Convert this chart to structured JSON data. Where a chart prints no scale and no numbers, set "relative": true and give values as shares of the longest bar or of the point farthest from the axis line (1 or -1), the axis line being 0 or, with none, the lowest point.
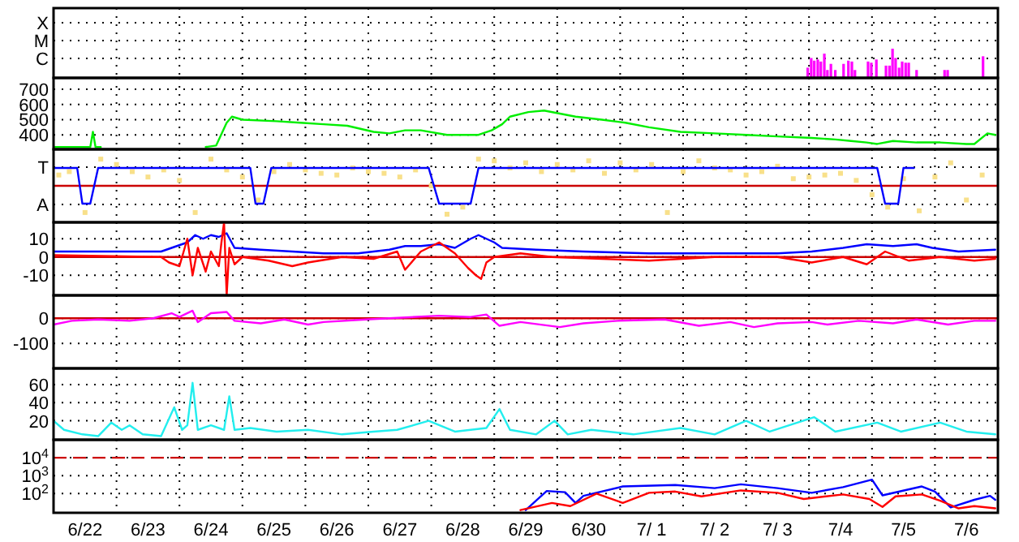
{
  "chart_data": [
    {
      "type": "bar",
      "relative": true,
      "annotations": [
        "X",
        "M",
        "C"
      ],
      "grid": true,
      "tick_labels": "y",
      "xlim": [
        "--06-22T00:00",
        "--07-07T00:00"
      ],
      "xticks": [
        {
          "value": "--06-23T00:00",
          "label": null
        },
        {
          "value": "--06-24T00:00",
          "label": null
        },
        {
          "value": "--06-25T00:00",
          "label": null
        },
        {
          "value": "--06-26T00:00",
          "label": null
        },
        {
          "value": "--06-27T00:00",
          "label": null
        },
        {
          "value": "--06-28T00:00",
          "label": null
        },
        {
          "value": "--06-29T00:00",
          "label": null
        },
        {
          "value": "--06-30T00:00",
          "label": null
        },
        {
          "value": "--07-01T00:00",
          "label": null
        },
        {
          "value": "--07-02T00:00",
          "label": null
        },
        {
          "value": "--07-03T00:00",
          "label": null
        },
        {
          "value": "--07-04T00:00",
          "label": null
        },
        {
          "value": "--07-05T00:00",
          "label": null
        },
        {
          "value": "--07-06T00:00",
          "label": null
        }
      ],
      "series": [
        {
          "color": "#ff00ff",
          "x": [
            "--07-03T23:30",
            "--07-04T00:50",
            "--07-04T02:00",
            "--07-04T03:20",
            "--07-04T04:30",
            "--07-04T05:50",
            "--07-04T07:00",
            "--07-04T08:20",
            "--07-04T10:00",
            "--07-04T13:10",
            "--07-04T15:00",
            "--07-04T16:20",
            "--07-04T17:30",
            "--07-04T22:30",
            "--07-04T23:45",
            "--07-05T01:40",
            "--07-05T05:20",
            "--07-05T06:40",
            "--07-05T07:50",
            "--07-05T09:00",
            "--07-05T10:20",
            "--07-05T11:30",
            "--07-05T12:50",
            "--07-05T14:00",
            "--07-05T17:00",
            "--07-06T03:40",
            "--07-06T04:50",
            "--07-06T18:20"
          ],
          "values": [
            0.35,
            0.68,
            0.59,
            0.63,
            0.56,
            0.83,
            0.27,
            0.48,
            0.27,
            0.48,
            0.59,
            0.56,
            0.27,
            0.56,
            0.52,
            0.63,
            0.42,
            0.42,
            1,
            0.68,
            0.35,
            0.56,
            0.52,
            0.52,
            0.27,
            0.27,
            0.27,
            0.74
          ]
        }
      ]
    },
    {
      "type": "line",
      "grid": true,
      "tick_labels": "y",
      "xlim": [
        "--06-22T00:00",
        "--07-07T00:00"
      ],
      "xticks": [
        {
          "value": "--06-23T00:00",
          "label": null
        },
        {
          "value": "--06-24T00:00",
          "label": null
        },
        {
          "value": "--06-25T00:00",
          "label": null
        },
        {
          "value": "--06-26T00:00",
          "label": null
        },
        {
          "value": "--06-27T00:00",
          "label": null
        },
        {
          "value": "--06-28T00:00",
          "label": null
        },
        {
          "value": "--06-29T00:00",
          "label": null
        },
        {
          "value": "--06-30T00:00",
          "label": null
        },
        {
          "value": "--07-01T00:00",
          "label": null
        },
        {
          "value": "--07-02T00:00",
          "label": null
        },
        {
          "value": "--07-03T00:00",
          "label": null
        },
        {
          "value": "--07-04T00:00",
          "label": null
        },
        {
          "value": "--07-05T00:00",
          "label": null
        },
        {
          "value": "--07-06T00:00",
          "label": null
        }
      ],
      "ylim": [
        305,
        775
      ],
      "yticks": [
        400,
        500,
        600,
        700
      ],
      "series": [
        {
          "color": "#00ee00",
          "x": [
            "--06-22T00:00",
            "--06-22T11:00",
            "--06-22T14:00",
            "--06-22T15:00",
            "--06-22T16:00",
            "--06-22T18:00",
            "--06-23T12:00",
            "--06-24T10:00",
            "--06-24T14:00",
            "--06-24T18:00",
            "--06-24T20:00",
            "--06-25T00:00",
            "--06-25T13:00",
            "--06-25T22:00",
            "--06-26T07:00",
            "--06-26T16:00",
            "--06-27T02:00",
            "--06-27T08:00",
            "--06-27T14:00",
            "--06-27T20:00",
            "--06-28T06:00",
            "--06-28T12:00",
            "--06-28T18:00",
            "--06-28T23:00",
            "--06-29T03:00",
            "--06-29T06:00",
            "--06-29T13:00",
            "--06-29T19:00",
            "--06-30T01:00",
            "--06-30T07:00",
            "--06-30T17:00",
            "--07-01T02:00",
            "--07-01T11:00",
            "--07-01T23:00",
            "--07-02T12:00",
            "--07-03T00:00",
            "--07-03T12:00",
            "--07-04T01:00",
            "--07-04T10:00",
            "--07-04T16:00",
            "--07-04T22:00",
            "--07-05T02:00",
            "--07-05T08:00",
            "--07-05T17:00",
            "--07-06T02:00",
            "--07-06T12:00",
            "--07-06T15:00",
            "--07-06T20:00",
            "--07-06T23:00"
          ],
          "values": [
            320,
            320,
            320,
            420,
            320,
            320,
            null,
            320,
            330,
            480,
            520,
            500,
            490,
            480,
            470,
            460,
            420,
            410,
            430,
            430,
            400,
            400,
            400,
            430,
            470,
            520,
            550,
            560,
            540,
            520,
            500,
            480,
            450,
            420,
            410,
            400,
            390,
            380,
            370,
            360,
            350,
            340,
            360,
            350,
            350,
            340,
            340,
            410,
            400
          ]
        }
      ]
    },
    {
      "type": "line",
      "grid": true,
      "tick_labels": "y",
      "xlim": [
        "--06-22T00:00",
        "--07-07T00:00"
      ],
      "xticks": [
        {
          "value": "--06-23T00:00",
          "label": null
        },
        {
          "value": "--06-24T00:00",
          "label": null
        },
        {
          "value": "--06-25T00:00",
          "label": null
        },
        {
          "value": "--06-26T00:00",
          "label": null
        },
        {
          "value": "--06-27T00:00",
          "label": null
        },
        {
          "value": "--06-28T00:00",
          "label": null
        },
        {
          "value": "--06-29T00:00",
          "label": null
        },
        {
          "value": "--06-30T00:00",
          "label": null
        },
        {
          "value": "--07-01T00:00",
          "label": null
        },
        {
          "value": "--07-02T00:00",
          "label": null
        },
        {
          "value": "--07-03T00:00",
          "label": null
        },
        {
          "value": "--07-04T00:00",
          "label": null
        },
        {
          "value": "--07-05T00:00",
          "label": null
        },
        {
          "value": "--07-06T00:00",
          "label": null
        }
      ],
      "relative": true,
      "annotations": [
        "T",
        "A"
      ],
      "ref_lines": [
        {
          "axis": "y",
          "value": 0,
          "color": "#cc0000"
        }
      ],
      "series": [
        {
          "type": "scatter",
          "marker": "square",
          "color": "#f8e08a",
          "x": [
            "--06-22T02:00",
            "--06-22T06:00",
            "--06-22T12:00",
            "--06-22T18:00",
            "--06-23T00:00",
            "--06-23T06:00",
            "--06-23T12:00",
            "--06-23T18:00",
            "--06-24T00:00",
            "--06-24T06:00",
            "--06-24T12:00",
            "--06-24T18:00",
            "--06-25T00:00",
            "--06-25T06:00",
            "--06-25T12:00",
            "--06-25T18:00",
            "--06-26T00:00",
            "--06-26T06:00",
            "--06-26T12:00",
            "--06-26T18:00",
            "--06-27T00:00",
            "--06-27T06:00",
            "--06-27T12:00",
            "--06-27T18:00",
            "--06-28T00:00",
            "--06-28T06:00",
            "--06-28T12:00",
            "--06-28T18:00",
            "--06-29T00:00",
            "--06-29T06:00",
            "--06-29T12:00",
            "--06-29T18:00",
            "--06-30T00:00",
            "--06-30T06:00",
            "--06-30T12:00",
            "--06-30T18:00",
            "--07-01T00:00",
            "--07-01T06:00",
            "--07-01T12:00",
            "--07-01T18:00",
            "--07-02T00:00",
            "--07-02T06:00",
            "--07-02T12:00",
            "--07-02T18:00",
            "--07-03T00:00",
            "--07-03T06:00",
            "--07-03T12:00",
            "--07-03T18:00",
            "--07-04T00:00",
            "--07-04T06:00",
            "--07-04T12:00",
            "--07-04T18:00",
            "--07-05T00:00",
            "--07-05T06:00",
            "--07-05T12:00",
            "--07-05T18:00",
            "--07-06T00:00",
            "--07-06T06:00",
            "--07-06T12:00",
            "--07-06T18:00"
          ],
          "values": [
            0.38,
            0.5,
            -0.94,
            0.94,
            0.75,
            0.5,
            0.31,
            0.56,
            0.19,
            -0.94,
            0.94,
            0.56,
            0.31,
            -0.5,
            0.5,
            0.75,
            0.56,
            0.44,
            0.38,
            0.63,
            0.5,
            0.44,
            0.31,
            0.56,
            0,
            -1,
            -0.75,
            0.94,
            0.88,
            0.63,
            0.81,
            0.5,
            0.75,
            0.56,
            0.88,
            0.44,
            0.81,
            0.56,
            0.75,
            -0.94,
            0.5,
            0.88,
            0.63,
            0.56,
            0.38,
            0.5,
            0.69,
            0.25,
            0.31,
            0.38,
            0.44,
            0.19,
            -0.31,
            -0.75,
            0.25,
            -0.88,
            0.31,
            0.81,
            -0.5,
            0.38
          ]
        },
        {
          "color": "#0000ff",
          "x": [
            "--06-22T00:00",
            "--06-22T09:00",
            "--06-22T11:00",
            "--06-22T14:00",
            "--06-22T17:00",
            "--06-25T03:00",
            "--06-25T05:00",
            "--06-25T08:00",
            "--06-25T11:00",
            "--06-27T23:00",
            "--06-28T03:00",
            "--06-28T15:00",
            "--06-28T18:00",
            "--07-05T02:00",
            "--07-05T05:00",
            "--07-05T10:00",
            "--07-05T12:00",
            "--07-05T16:00"
          ],
          "values": [
            0.63,
            0.63,
            -0.63,
            -0.63,
            0.63,
            0.63,
            -0.63,
            -0.63,
            0.63,
            0.63,
            -0.63,
            -0.63,
            0.63,
            0.63,
            -0.63,
            -0.63,
            0.63,
            0.63
          ]
        }
      ]
    },
    {
      "type": "line",
      "grid": true,
      "tick_labels": "y",
      "xlim": [
        "--06-22T00:00",
        "--07-07T00:00"
      ],
      "xticks": [
        {
          "value": "--06-23T00:00",
          "label": null
        },
        {
          "value": "--06-24T00:00",
          "label": null
        },
        {
          "value": "--06-25T00:00",
          "label": null
        },
        {
          "value": "--06-26T00:00",
          "label": null
        },
        {
          "value": "--06-27T00:00",
          "label": null
        },
        {
          "value": "--06-28T00:00",
          "label": null
        },
        {
          "value": "--06-29T00:00",
          "label": null
        },
        {
          "value": "--06-30T00:00",
          "label": null
        },
        {
          "value": "--07-01T00:00",
          "label": null
        },
        {
          "value": "--07-02T00:00",
          "label": null
        },
        {
          "value": "--07-03T00:00",
          "label": null
        },
        {
          "value": "--07-04T00:00",
          "label": null
        },
        {
          "value": "--07-05T00:00",
          "label": null
        },
        {
          "value": "--07-06T00:00",
          "label": null
        }
      ],
      "ylim": [
        -21,
        19
      ],
      "yticks": [
        -10,
        0,
        10
      ],
      "ref_lines": [
        {
          "axis": "y",
          "value": 0,
          "color": "#cc0000"
        }
      ],
      "series": [
        {
          "color": "#0000ff",
          "x": [
            "--06-22T00:00",
            "--06-23T17:00",
            "--06-23T21:00",
            "--06-24T03:00",
            "--06-24T06:00",
            "--06-24T09:00",
            "--06-24T12:00",
            "--06-24T15:00",
            "--06-24T18:00",
            "--06-24T21:00",
            "--06-25T07:00",
            "--06-25T19:00",
            "--06-26T07:00",
            "--06-26T20:00",
            "--06-27T08:00",
            "--06-27T14:00",
            "--06-27T20:00",
            "--06-28T03:00",
            "--06-28T09:00",
            "--06-28T15:00",
            "--06-28T18:00",
            "--06-28T21:00",
            "--06-29T00:00",
            "--06-29T03:00",
            "--06-29T16:00",
            "--06-30T10:00",
            "--07-01T11:00",
            "--07-02T12:00",
            "--07-03T12:00",
            "--07-04T01:00",
            "--07-04T13:00",
            "--07-04T22:00",
            "--07-05T08:00",
            "--07-05T17:00",
            "--07-05T23:00",
            "--07-06T09:00",
            "--07-06T23:00"
          ],
          "values": [
            3,
            3,
            5,
            8,
            12,
            10,
            12,
            11,
            13,
            5,
            4,
            3,
            2,
            2,
            4,
            6,
            6,
            7,
            5,
            10,
            12,
            10,
            8,
            5,
            4,
            3,
            2,
            2,
            2,
            3,
            5,
            7,
            6,
            7,
            5,
            3,
            4
          ]
        },
        {
          "color": "#ff0000",
          "x": [
            "--06-22T00:00",
            "--06-23T17:00",
            "--06-23T20:00",
            "--06-24T00:00",
            "--06-24T03:00",
            "--06-24T05:00",
            "--06-24T07:00",
            "--06-24T10:00",
            "--06-24T12:00",
            "--06-24T15:00",
            "--06-24T16:00",
            "--06-24T17:00",
            "--06-24T18:00",
            "--06-24T19:00",
            "--06-24T21:00",
            "--06-25T00:00",
            "--06-25T10:00",
            "--06-25T19:00",
            "--06-26T01:00",
            "--06-26T14:00",
            "--06-27T02:00",
            "--06-27T11:00",
            "--06-27T14:00",
            "--06-27T20:00",
            "--06-28T03:00",
            "--06-28T09:00",
            "--06-28T14:00",
            "--06-28T17:00",
            "--06-28T19:00",
            "--06-28T21:00",
            "--06-29T00:00",
            "--06-29T10:00",
            "--06-29T22:00",
            "--06-30T17:00",
            "--07-01T11:00",
            "--07-02T12:00",
            "--07-03T12:00",
            "--07-04T01:00",
            "--07-04T13:00",
            "--07-04T22:00",
            "--07-05T05:00",
            "--07-05T14:00",
            "--07-06T02:00",
            "--07-06T15:00",
            "--07-06T23:00"
          ],
          "values": [
            1,
            0,
            -3,
            -5,
            10,
            -10,
            5,
            -8,
            3,
            -5,
            8,
            19,
            -21,
            5,
            -4,
            0,
            -2,
            -5,
            -3,
            0,
            -1,
            3,
            -7,
            3,
            8,
            2,
            -6,
            -10,
            -12,
            -3,
            0,
            2,
            0,
            -1,
            -2,
            0,
            0,
            -3,
            0,
            -4,
            3,
            -2,
            0,
            -2,
            -1
          ]
        }
      ]
    },
    {
      "type": "line",
      "grid": true,
      "tick_labels": "y",
      "xlim": [
        "--06-22T00:00",
        "--07-07T00:00"
      ],
      "xticks": [
        {
          "value": "--06-23T00:00",
          "label": null
        },
        {
          "value": "--06-24T00:00",
          "label": null
        },
        {
          "value": "--06-25T00:00",
          "label": null
        },
        {
          "value": "--06-26T00:00",
          "label": null
        },
        {
          "value": "--06-27T00:00",
          "label": null
        },
        {
          "value": "--06-28T00:00",
          "label": null
        },
        {
          "value": "--06-29T00:00",
          "label": null
        },
        {
          "value": "--06-30T00:00",
          "label": null
        },
        {
          "value": "--07-01T00:00",
          "label": null
        },
        {
          "value": "--07-02T00:00",
          "label": null
        },
        {
          "value": "--07-03T00:00",
          "label": null
        },
        {
          "value": "--07-04T00:00",
          "label": null
        },
        {
          "value": "--07-05T00:00",
          "label": null
        },
        {
          "value": "--07-06T00:00",
          "label": null
        }
      ],
      "ylim": [
        -199,
        91
      ],
      "yticks": [
        -100,
        0
      ],
      "ref_lines": [
        {
          "axis": "y",
          "value": 0,
          "color": "#cc0000"
        }
      ],
      "series": [
        {
          "color": "#ff00ff",
          "x": [
            "--06-22T00:00",
            "--06-22T07:00",
            "--06-22T17:00",
            "--06-23T05:00",
            "--06-23T14:00",
            "--06-23T21:00",
            "--06-24T00:00",
            "--06-24T05:00",
            "--06-24T07:00",
            "--06-24T12:00",
            "--06-24T18:00",
            "--06-24T21:00",
            "--06-25T07:00",
            "--06-25T16:00",
            "--06-26T01:00",
            "--06-26T07:00",
            "--06-26T23:00",
            "--06-27T08:00",
            "--06-28T03:00",
            "--06-28T15:00",
            "--06-28T21:00",
            "--06-29T02:00",
            "--06-29T10:00",
            "--06-30T01:00",
            "--06-30T10:00",
            "--06-30T23:00",
            "--07-01T17:00",
            "--07-02T06:00",
            "--07-02T18:00",
            "--07-03T03:00",
            "--07-03T12:00",
            "--07-04T01:00",
            "--07-04T07:00",
            "--07-04T19:00",
            "--07-05T08:00",
            "--07-05T17:00",
            "--07-06T05:00",
            "--07-06T15:00",
            "--07-06T23:00"
          ],
          "values": [
            -25,
            -10,
            -5,
            -10,
            0,
            20,
            5,
            30,
            -15,
            20,
            25,
            -10,
            -20,
            -5,
            -25,
            -15,
            -5,
            0,
            10,
            5,
            15,
            -30,
            -15,
            -35,
            -20,
            -10,
            -5,
            -30,
            -15,
            -35,
            -20,
            -15,
            -25,
            -10,
            -20,
            -5,
            -25,
            -10,
            -10
          ]
        }
      ]
    },
    {
      "type": "line",
      "grid": true,
      "tick_labels": "y",
      "xlim": [
        "--06-22T00:00",
        "--07-07T00:00"
      ],
      "xticks": [
        {
          "value": "--06-23T00:00",
          "label": null
        },
        {
          "value": "--06-24T00:00",
          "label": null
        },
        {
          "value": "--06-25T00:00",
          "label": null
        },
        {
          "value": "--06-26T00:00",
          "label": null
        },
        {
          "value": "--06-27T00:00",
          "label": null
        },
        {
          "value": "--06-28T00:00",
          "label": null
        },
        {
          "value": "--06-29T00:00",
          "label": null
        },
        {
          "value": "--06-30T00:00",
          "label": null
        },
        {
          "value": "--07-01T00:00",
          "label": null
        },
        {
          "value": "--07-02T00:00",
          "label": null
        },
        {
          "value": "--07-03T00:00",
          "label": null
        },
        {
          "value": "--07-04T00:00",
          "label": null
        },
        {
          "value": "--07-05T00:00",
          "label": null
        },
        {
          "value": "--07-06T00:00",
          "label": null
        }
      ],
      "ylim": [
        -1,
        78
      ],
      "yticks": [
        20,
        40,
        60
      ],
      "series": [
        {
          "color": "#22eeee",
          "x": [
            "--06-22T00:00",
            "--06-22T04:00",
            "--06-22T11:00",
            "--06-22T17:00",
            "--06-22T22:00",
            "--06-23T02:00",
            "--06-23T05:00",
            "--06-23T10:00",
            "--06-23T17:00",
            "--06-23T22:00",
            "--06-24T01:00",
            "--06-24T03:00",
            "--06-24T05:00",
            "--06-24T07:00",
            "--06-24T12:00",
            "--06-24T17:00",
            "--06-24T19:00",
            "--06-24T21:00",
            "--06-25T03:00",
            "--06-25T13:00",
            "--06-26T01:00",
            "--06-26T14:00",
            "--06-27T02:00",
            "--06-27T11:00",
            "--06-27T23:00",
            "--06-28T09:00",
            "--06-28T21:00",
            "--06-29T02:00",
            "--06-29T06:00",
            "--06-29T16:00",
            "--06-29T23:00",
            "--06-30T04:00",
            "--06-30T13:00",
            "--07-01T05:00",
            "--07-01T23:00",
            "--07-02T12:00",
            "--07-03T00:00",
            "--07-03T09:00",
            "--07-04T02:00",
            "--07-04T10:00",
            "--07-05T02:00",
            "--07-05T11:00",
            "--07-06T02:00",
            "--07-06T12:00",
            "--07-06T23:00"
          ],
          "values": [
            20,
            10,
            5,
            3,
            18,
            10,
            15,
            5,
            3,
            35,
            10,
            15,
            62,
            10,
            15,
            10,
            47,
            10,
            12,
            8,
            10,
            5,
            8,
            10,
            20,
            8,
            12,
            33,
            10,
            5,
            20,
            5,
            10,
            5,
            12,
            5,
            20,
            8,
            24,
            8,
            18,
            8,
            18,
            8,
            5
          ]
        }
      ]
    },
    {
      "type": "line",
      "log": true,
      "grid": true,
      "xlim": [
        "--06-22T00:00",
        "--07-07T00:00"
      ],
      "xticks": [
        {
          "value": "--06-22T12:00",
          "label": "6/22"
        },
        {
          "value": "--06-23T00:00",
          "label": null
        },
        {
          "value": "--06-23T12:00",
          "label": "6/23"
        },
        {
          "value": "--06-24T00:00",
          "label": null
        },
        {
          "value": "--06-24T12:00",
          "label": "6/24"
        },
        {
          "value": "--06-25T00:00",
          "label": null
        },
        {
          "value": "--06-25T12:00",
          "label": "6/25"
        },
        {
          "value": "--06-26T00:00",
          "label": null
        },
        {
          "value": "--06-26T12:00",
          "label": "6/26"
        },
        {
          "value": "--06-27T00:00",
          "label": null
        },
        {
          "value": "--06-27T12:00",
          "label": "6/27"
        },
        {
          "value": "--06-28T00:00",
          "label": null
        },
        {
          "value": "--06-28T12:00",
          "label": "6/28"
        },
        {
          "value": "--06-29T00:00",
          "label": null
        },
        {
          "value": "--06-29T12:00",
          "label": "6/29"
        },
        {
          "value": "--06-30T00:00",
          "label": null
        },
        {
          "value": "--06-30T12:00",
          "label": "6/30"
        },
        {
          "value": "--07-01T00:00",
          "label": null
        },
        {
          "value": "--07-01T12:00",
          "label": "7/ 1"
        },
        {
          "value": "--07-02T00:00",
          "label": null
        },
        {
          "value": "--07-02T12:00",
          "label": "7/ 2"
        },
        {
          "value": "--07-03T00:00",
          "label": null
        },
        {
          "value": "--07-03T12:00",
          "label": "7/ 3"
        },
        {
          "value": "--07-04T00:00",
          "label": null
        },
        {
          "value": "--07-04T12:00",
          "label": "7/4"
        },
        {
          "value": "--07-05T00:00",
          "label": null
        },
        {
          "value": "--07-05T12:00",
          "label": "7/5"
        },
        {
          "value": "--07-06T00:00",
          "label": null
        },
        {
          "value": "--07-06T12:00",
          "label": "7/6"
        }
      ],
      "ylim": [
        8.5,
        100000
      ],
      "yticks": [
        {
          "value": 100,
          "label": "10$^{2}$"
        },
        {
          "value": 1000,
          "label": "10$^{3}$"
        },
        {
          "value": 10000,
          "label": "10$^{4}$"
        }
      ],
      "ref_lines": [
        {
          "axis": "y",
          "value": 10000,
          "color": "#cc0000",
          "line_style": "dashed"
        }
      ],
      "series": [
        {
          "color": "#0000ff",
          "x": [
            "--06-29T12:00",
            "--06-29T20:00",
            "--06-30T03:00",
            "--06-30T07:00",
            "--06-30T10:00",
            "--07-01T01:00",
            "--07-01T21:00",
            "--07-02T12:00",
            "--07-02T22:00",
            "--07-03T12:00",
            "--07-04T01:00",
            "--07-04T13:00",
            "--07-05T00:00",
            "--07-05T04:00",
            "--07-05T19:00",
            "--07-06T00:00",
            "--07-06T06:00",
            "--07-06T15:00",
            "--07-06T21:00",
            "--07-06T23:00"
          ],
          "values": [
            12,
            140,
            120,
            30,
            75,
            250,
            300,
            200,
            330,
            200,
            110,
            230,
            600,
            80,
            250,
            130,
            17,
            45,
            75,
            45
          ]
        },
        {
          "color": "#ff0000",
          "x": [
            "--06-29T10:00",
            "--06-29T22:00",
            "--06-30T05:00",
            "--06-30T15:00",
            "--07-01T01:00",
            "--07-01T11:00",
            "--07-01T21:00",
            "--07-02T07:00",
            "--07-02T22:00",
            "--07-03T12:00",
            "--07-03T22:00",
            "--07-04T13:00",
            "--07-04T23:00",
            "--07-05T04:00",
            "--07-05T09:00",
            "--07-05T19:00",
            "--07-06T02:00",
            "--07-06T09:00",
            "--07-06T15:00",
            "--07-06T23:00"
          ],
          "values": [
            12,
            30,
            20,
            100,
            30,
            110,
            130,
            70,
            150,
            110,
            50,
            90,
            50,
            18,
            70,
            90,
            40,
            15,
            20,
            15
          ]
        }
      ]
    }
  ]
}
